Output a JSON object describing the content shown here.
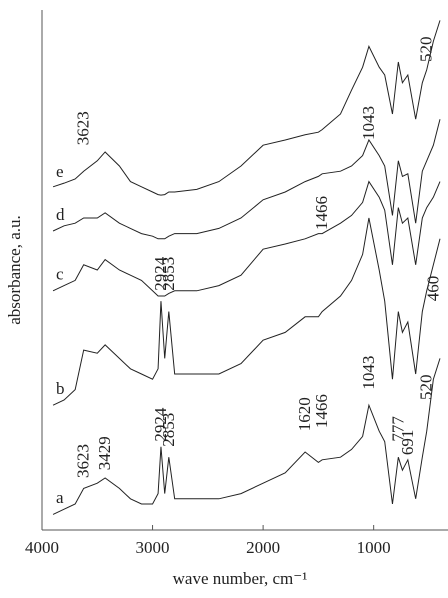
{
  "chart_data": {
    "type": "line",
    "xlabel": "wave number, cm⁻¹",
    "ylabel": "absorbance, a.u.",
    "xlim": [
      4000,
      400
    ],
    "xticks": [
      4000,
      3000,
      2000,
      1000
    ],
    "ylim": [
      0,
      100
    ],
    "color": "#222222",
    "x": [
      3900,
      3800,
      3700,
      3623,
      3500,
      3429,
      3300,
      3200,
      3100,
      3000,
      2950,
      2924,
      2890,
      2853,
      2800,
      2600,
      2400,
      2200,
      2000,
      1800,
      1620,
      1500,
      1466,
      1300,
      1200,
      1100,
      1043,
      950,
      900,
      830,
      777,
      740,
      691,
      620,
      560,
      520,
      460,
      400
    ],
    "series": [
      {
        "name": "a",
        "values": [
          3,
          4,
          5,
          8,
          9,
          10,
          8,
          6,
          5,
          5,
          7,
          16,
          7,
          14,
          6,
          6,
          6,
          7,
          9,
          11,
          15,
          13,
          13.5,
          14,
          15.5,
          18,
          24,
          19,
          17,
          5,
          14,
          11.5,
          13.5,
          6,
          14,
          19,
          29,
          33
        ]
      },
      {
        "name": "b",
        "values": [
          24,
          25,
          27,
          34.6,
          34,
          35.6,
          33,
          31,
          30,
          29,
          31,
          44,
          33,
          42,
          30,
          30,
          30,
          32,
          36.5,
          38,
          41,
          41,
          42,
          45,
          48,
          53,
          60,
          50,
          44,
          29,
          42,
          38,
          40,
          30,
          42,
          46,
          51,
          56
        ]
      },
      {
        "name": "c",
        "values": [
          46,
          47,
          48,
          51,
          50,
          52,
          50,
          49,
          48,
          46,
          45,
          45,
          45,
          45.5,
          46,
          46,
          47,
          49,
          54,
          55,
          56,
          57,
          57,
          59,
          60.5,
          63,
          67,
          64,
          61.5,
          51,
          62,
          59,
          60,
          51,
          60,
          62,
          64,
          67
        ]
      },
      {
        "name": "d",
        "values": [
          57.5,
          58.5,
          59,
          60,
          60,
          61,
          59,
          58,
          57,
          56.5,
          56,
          56,
          56,
          56.5,
          57,
          57,
          58,
          60,
          63.5,
          65,
          67,
          68,
          68.5,
          69,
          70,
          72,
          75,
          72,
          70,
          60.5,
          71,
          68,
          68.5,
          59,
          69,
          71,
          74,
          79
        ]
      },
      {
        "name": "e",
        "values": [
          66,
          66.7,
          67.5,
          69,
          71,
          72.7,
          70,
          67,
          66,
          65,
          64.5,
          64.4,
          64.5,
          65,
          65,
          65.5,
          67,
          70,
          74,
          75,
          76,
          76.5,
          77,
          80,
          84.6,
          89,
          93,
          89,
          87.5,
          80,
          90,
          86,
          87.5,
          79,
          86,
          88.5,
          94,
          98
        ]
      }
    ],
    "annotations": [
      {
        "text": "3623",
        "x": 3623,
        "y": 10
      },
      {
        "text": "3429",
        "x": 3429,
        "y": 11.5
      },
      {
        "text": "2924",
        "x": 2924,
        "y": 17
      },
      {
        "text": "2853",
        "x": 2853,
        "y": 16
      },
      {
        "text": "1620",
        "x": 1620,
        "y": 19
      },
      {
        "text": "1466",
        "x": 1466,
        "y": 19.6
      },
      {
        "text": "1043",
        "x": 1043,
        "y": 27
      },
      {
        "text": "777",
        "x": 777,
        "y": 17
      },
      {
        "text": "691",
        "x": 691,
        "y": 14.4
      },
      {
        "text": "520",
        "x": 520,
        "y": 25
      },
      {
        "text": "460",
        "x": 460,
        "y": 44
      },
      {
        "text": "2924",
        "x": 2924,
        "y": 46
      },
      {
        "text": "2853",
        "x": 2853,
        "y": 46
      },
      {
        "text": "1466",
        "x": 1466,
        "y": 57.7
      },
      {
        "text": "3623",
        "x": 3623,
        "y": 74
      },
      {
        "text": "1043",
        "x": 1043,
        "y": 75
      },
      {
        "text": "520",
        "x": 520,
        "y": 90
      }
    ]
  }
}
